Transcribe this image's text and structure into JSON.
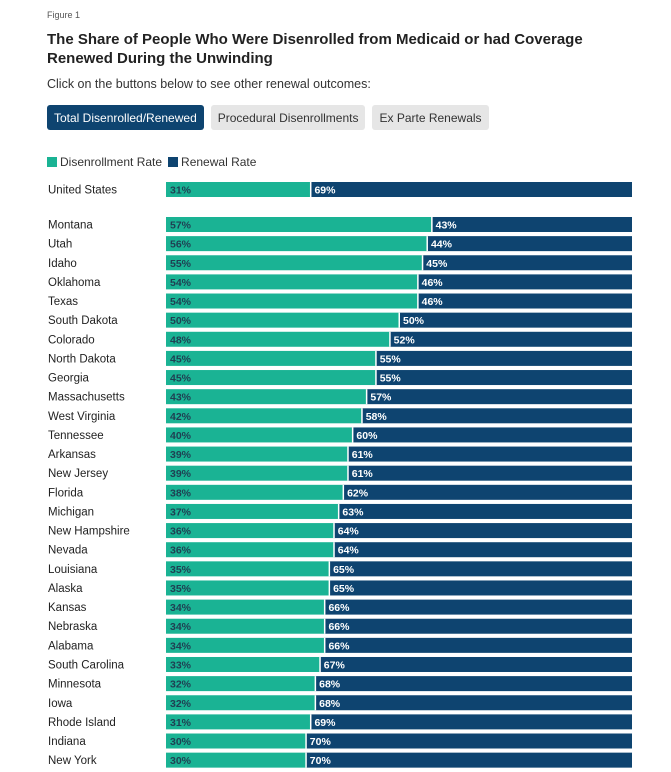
{
  "figure_label": "Figure 1",
  "title": "The Share of People Who Were Disenrolled from Medicaid or had Coverage Renewed During the Unwinding",
  "instruction": "Click on the buttons below to see other renewal outcomes:",
  "buttons": [
    {
      "label": "Total Disenrolled/Renewed",
      "active": true
    },
    {
      "label": "Procedural Disenrollments",
      "active": false
    },
    {
      "label": "Ex Parte Renewals",
      "active": false
    }
  ],
  "colors": {
    "disenrollment": "#1ab394",
    "renewal": "#0e4470",
    "active_button": "#0e4470",
    "inactive_button": "#e6e6e6"
  },
  "chart_data": {
    "type": "bar",
    "orientation": "horizontal",
    "stacked": true,
    "value_suffix": "%",
    "legend_placement": "top-left",
    "grid": false,
    "xlim": [
      0,
      100
    ],
    "series": [
      {
        "name": "Disenrollment Rate",
        "color": "#1ab394"
      },
      {
        "name": "Renewal Rate",
        "color": "#0e4470"
      }
    ],
    "rows": [
      {
        "label": "United States",
        "disenrollment": 31,
        "renewal": 69
      },
      {
        "label": "Montana",
        "disenrollment": 57,
        "renewal": 43
      },
      {
        "label": "Utah",
        "disenrollment": 56,
        "renewal": 44
      },
      {
        "label": "Idaho",
        "disenrollment": 55,
        "renewal": 45
      },
      {
        "label": "Oklahoma",
        "disenrollment": 54,
        "renewal": 46
      },
      {
        "label": "Texas",
        "disenrollment": 54,
        "renewal": 46
      },
      {
        "label": "South Dakota",
        "disenrollment": 50,
        "renewal": 50
      },
      {
        "label": "Colorado",
        "disenrollment": 48,
        "renewal": 52
      },
      {
        "label": "North Dakota",
        "disenrollment": 45,
        "renewal": 55
      },
      {
        "label": "Georgia",
        "disenrollment": 45,
        "renewal": 55
      },
      {
        "label": "Massachusetts",
        "disenrollment": 43,
        "renewal": 57
      },
      {
        "label": "West Virginia",
        "disenrollment": 42,
        "renewal": 58
      },
      {
        "label": "Tennessee",
        "disenrollment": 40,
        "renewal": 60
      },
      {
        "label": "Arkansas",
        "disenrollment": 39,
        "renewal": 61
      },
      {
        "label": "New Jersey",
        "disenrollment": 39,
        "renewal": 61
      },
      {
        "label": "Florida",
        "disenrollment": 38,
        "renewal": 62
      },
      {
        "label": "Michigan",
        "disenrollment": 37,
        "renewal": 63
      },
      {
        "label": "New Hampshire",
        "disenrollment": 36,
        "renewal": 64
      },
      {
        "label": "Nevada",
        "disenrollment": 36,
        "renewal": 64
      },
      {
        "label": "Louisiana",
        "disenrollment": 35,
        "renewal": 65
      },
      {
        "label": "Alaska",
        "disenrollment": 35,
        "renewal": 65
      },
      {
        "label": "Kansas",
        "disenrollment": 34,
        "renewal": 66
      },
      {
        "label": "Nebraska",
        "disenrollment": 34,
        "renewal": 66
      },
      {
        "label": "Alabama",
        "disenrollment": 34,
        "renewal": 66
      },
      {
        "label": "South Carolina",
        "disenrollment": 33,
        "renewal": 67
      },
      {
        "label": "Minnesota",
        "disenrollment": 32,
        "renewal": 68
      },
      {
        "label": "Iowa",
        "disenrollment": 32,
        "renewal": 68
      },
      {
        "label": "Rhode Island",
        "disenrollment": 31,
        "renewal": 69
      },
      {
        "label": "Indiana",
        "disenrollment": 30,
        "renewal": 70
      },
      {
        "label": "New York",
        "disenrollment": 30,
        "renewal": 70
      }
    ]
  }
}
